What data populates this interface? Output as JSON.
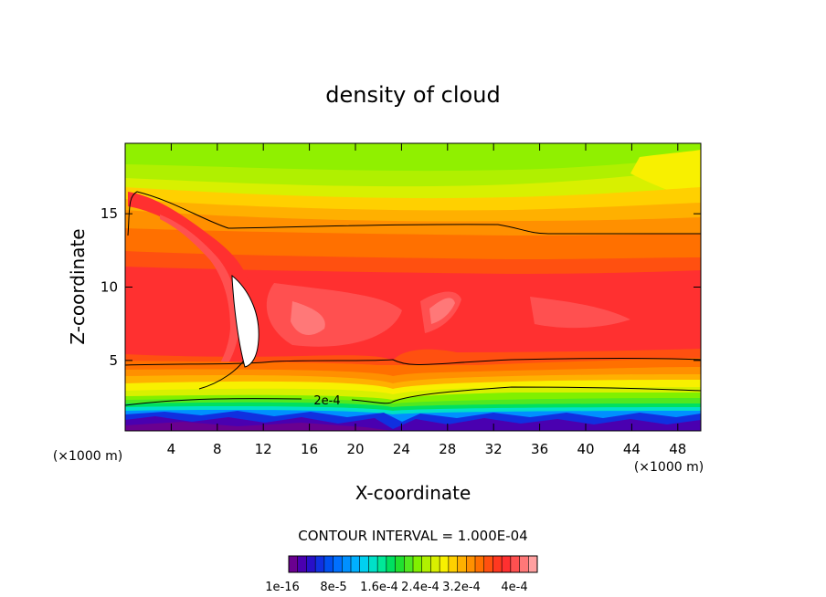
{
  "chart_data": {
    "type": "contour",
    "title": "density of cloud",
    "xlabel": "X-coordinate",
    "ylabel": "Z-coordinate",
    "x_unit_left": "(×1000 m)",
    "x_unit_right": "(×1000 m)",
    "xlim": [
      0,
      50
    ],
    "ylim": [
      0.2,
      19.8
    ],
    "x_ticks": [
      4,
      8,
      12,
      16,
      20,
      24,
      28,
      32,
      36,
      40,
      44,
      48
    ],
    "x_tick_labels": [
      "4",
      "8",
      "12",
      "16",
      "20",
      "24",
      "28",
      "32",
      "36",
      "40",
      "44",
      "48"
    ],
    "y_ticks": [
      5,
      10,
      15
    ],
    "y_tick_labels": [
      "5",
      "10",
      "15"
    ],
    "contour_label": "2e-4",
    "contour_interval_text": "CONTOUR INTERVAL = 1.000E-04",
    "colorbar_labels": [
      "1e-16",
      "8e-5",
      "1.6e-4",
      "2.4e-4",
      "3.2e-4",
      "4e-4"
    ],
    "colorbar_colors": [
      "#6a0090",
      "#4a00b0",
      "#2810c8",
      "#1030e0",
      "#0050f0",
      "#0070ff",
      "#0090ff",
      "#00b0ff",
      "#00d0f0",
      "#00e0c8",
      "#00e898",
      "#00e060",
      "#20e030",
      "#50e820",
      "#80f000",
      "#b0f000",
      "#d8f000",
      "#f8f000",
      "#ffd000",
      "#ffb000",
      "#ff9000",
      "#ff7000",
      "#ff5010",
      "#ff3820",
      "#ff3030",
      "#ff5050",
      "#ff7878",
      "#ffa0a0"
    ]
  }
}
